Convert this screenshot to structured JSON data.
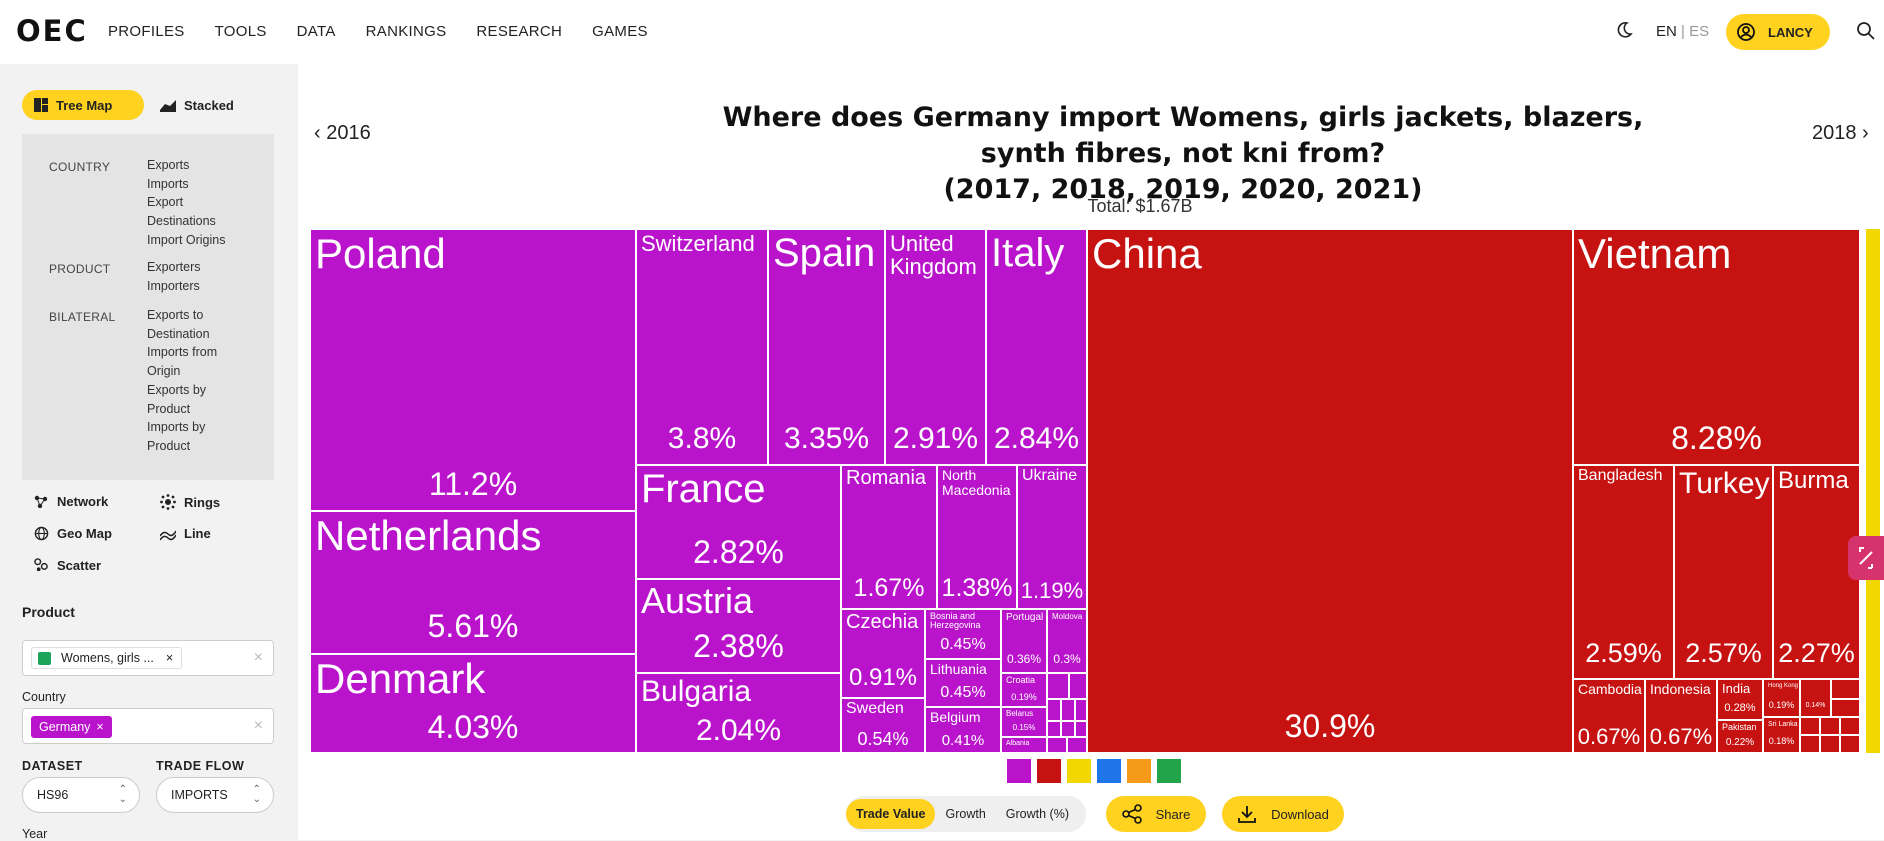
{
  "header": {
    "logo": "OEC",
    "nav": [
      "PROFILES",
      "TOOLS",
      "DATA",
      "RANKINGS",
      "RESEARCH",
      "GAMES"
    ],
    "lang_en": "EN",
    "lang_sep": "|",
    "lang_es": "ES",
    "user": "LANCY"
  },
  "sidebar": {
    "viz_top": [
      {
        "label": "Tree Map",
        "icon": "treemap-icon"
      },
      {
        "label": "Stacked",
        "icon": "stacked-icon"
      }
    ],
    "menu": {
      "country_label": "COUNTRY",
      "country_items": [
        "Exports",
        "Imports",
        "Export",
        "Destinations",
        "Import Origins"
      ],
      "product_label": "PRODUCT",
      "product_items": [
        "Exporters",
        "Importers"
      ],
      "bilateral_label": "BILATERAL",
      "bilateral_items": [
        "Exports to",
        "Destination",
        "Imports from",
        "Origin",
        "Exports by",
        "Product",
        "Imports by",
        "Product"
      ]
    },
    "viz_more": [
      {
        "label": "Network"
      },
      {
        "label": "Rings"
      },
      {
        "label": "Geo Map"
      },
      {
        "label": "Line"
      },
      {
        "label": "Scatter"
      }
    ],
    "product_heading": "Product",
    "product_value": "Womens, girls ...",
    "country_heading": "Country",
    "country_value": "Germany",
    "dataset_heading": "DATASET",
    "dataset_value": "HS96",
    "tradeflow_heading": "TRADE FLOW",
    "tradeflow_value": "IMPORTS",
    "year_heading": "Year"
  },
  "main": {
    "title_line1": "Where does Germany import Womens, girls jackets, blazers, synth fibres, not kni from?",
    "title_line2": "(2017, 2018, 2019, 2020, 2021)",
    "prev_year": "2016",
    "next_year": "2018",
    "total": "Total: $1.67B",
    "tabs": [
      "Trade Value",
      "Growth",
      "Growth (%)"
    ],
    "share": "Share",
    "download": "Download"
  },
  "colors": {
    "europe": "#b914cc",
    "asia": "#c71212",
    "accent": "#ffd220"
  },
  "chart_data": {
    "type": "treemap",
    "title": "Where does Germany import Womens, girls jackets, blazers, synth fibres, not kni from? (2017, 2018, 2019, 2020, 2021)",
    "total": "$1.67B",
    "cells": [
      {
        "name": "Poland",
        "share": "11.2%",
        "region": "europe"
      },
      {
        "name": "Netherlands",
        "share": "5.61%",
        "region": "europe"
      },
      {
        "name": "Denmark",
        "share": "4.03%",
        "region": "europe"
      },
      {
        "name": "Switzerland",
        "share": "3.8%",
        "region": "europe"
      },
      {
        "name": "Spain",
        "share": "3.35%",
        "region": "europe"
      },
      {
        "name": "United Kingdom",
        "share": "2.91%",
        "region": "europe"
      },
      {
        "name": "Italy",
        "share": "2.84%",
        "region": "europe"
      },
      {
        "name": "France",
        "share": "2.82%",
        "region": "europe"
      },
      {
        "name": "Austria",
        "share": "2.38%",
        "region": "europe"
      },
      {
        "name": "Bulgaria",
        "share": "2.04%",
        "region": "europe"
      },
      {
        "name": "Romania",
        "share": "1.67%",
        "region": "europe"
      },
      {
        "name": "North Macedonia",
        "share": "1.38%",
        "region": "europe"
      },
      {
        "name": "Ukraine",
        "share": "1.19%",
        "region": "europe"
      },
      {
        "name": "Czechia",
        "share": "0.91%",
        "region": "europe"
      },
      {
        "name": "Sweden",
        "share": "0.54%",
        "region": "europe"
      },
      {
        "name": "Bosnia and Herzegovina",
        "share": "0.45%",
        "region": "europe"
      },
      {
        "name": "Lithuania",
        "share": "0.45%",
        "region": "europe"
      },
      {
        "name": "Belgium",
        "share": "0.41%",
        "region": "europe"
      },
      {
        "name": "Portugal",
        "share": "0.36%",
        "region": "europe"
      },
      {
        "name": "Moldova",
        "share": "0.3%",
        "region": "europe"
      },
      {
        "name": "Croatia",
        "share": "0.19%",
        "region": "europe"
      },
      {
        "name": "Belarus",
        "share": "0.15%",
        "region": "europe"
      },
      {
        "name": "Albania",
        "share": "",
        "region": "europe"
      },
      {
        "name": "China",
        "share": "30.9%",
        "region": "asia"
      },
      {
        "name": "Vietnam",
        "share": "8.28%",
        "region": "asia"
      },
      {
        "name": "Bangladesh",
        "share": "2.59%",
        "region": "asia"
      },
      {
        "name": "Turkey",
        "share": "2.57%",
        "region": "asia"
      },
      {
        "name": "Burma",
        "share": "2.27%",
        "region": "asia"
      },
      {
        "name": "Cambodia",
        "share": "0.67%",
        "region": "asia"
      },
      {
        "name": "Indonesia",
        "share": "0.67%",
        "region": "asia"
      },
      {
        "name": "India",
        "share": "0.28%",
        "region": "asia"
      },
      {
        "name": "Pakistan",
        "share": "0.22%",
        "region": "asia"
      },
      {
        "name": "Hong Kong",
        "share": "0.19%",
        "region": "asia"
      },
      {
        "name": "Sri Lanka",
        "share": "0.18%",
        "region": "asia"
      },
      {
        "name": "",
        "share": "0.14%",
        "region": "asia"
      }
    ]
  }
}
